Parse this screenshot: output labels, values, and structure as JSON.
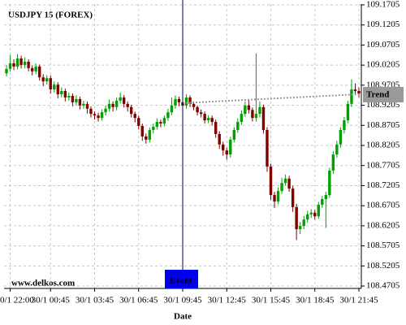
{
  "chart_data": {
    "type": "candlestick",
    "title": "USDJPY 15 (FOREX)",
    "x_label": "Date",
    "footer": "www.delkos.com",
    "categories": [
      null,
      "0/1 22:00",
      null,
      null,
      null,
      null,
      null,
      null,
      null,
      null,
      null,
      null,
      "30/1 00:45",
      null,
      null,
      null,
      null,
      null,
      null,
      null,
      null,
      null,
      null,
      null,
      "30/1 03:45",
      null,
      null,
      null,
      null,
      null,
      null,
      null,
      null,
      null,
      null,
      null,
      "30/1 06:45",
      null,
      null,
      null,
      null,
      null,
      null,
      null,
      null,
      null,
      null,
      null,
      "30/1 09:45",
      null,
      null,
      null,
      null,
      null,
      null,
      null,
      null,
      null,
      null,
      null,
      "30/1 12:45",
      null,
      null,
      null,
      null,
      null,
      null,
      null,
      null,
      null,
      null,
      null,
      "30/1 15:45",
      null,
      null,
      null,
      null,
      null,
      null,
      null,
      null,
      null,
      null,
      null,
      "30/1 18:45",
      null,
      null,
      null,
      null,
      null,
      null,
      null,
      null,
      null,
      null,
      null,
      "30/1 21:45"
    ],
    "open": [
      109.0,
      109.011,
      109.025,
      109.017,
      109.037,
      109.021,
      109.029,
      109.013,
      109.005,
      109.017,
      108.99,
      108.98,
      108.988,
      108.96,
      108.972,
      108.948,
      108.956,
      108.94,
      108.944,
      108.928,
      108.936,
      108.92,
      108.924,
      108.912,
      108.899,
      108.895,
      108.889,
      108.903,
      108.912,
      108.924,
      108.916,
      108.932,
      108.94,
      108.924,
      108.916,
      108.899,
      108.889,
      108.869,
      108.843,
      108.835,
      108.859,
      108.867,
      108.879,
      108.875,
      108.889,
      108.903,
      108.92,
      108.936,
      108.928,
      108.92,
      108.94,
      108.924,
      108.916,
      108.903,
      108.899,
      108.883,
      108.889,
      108.879,
      108.849,
      108.823,
      108.808,
      108.798,
      108.835,
      108.859,
      108.879,
      108.899,
      108.92,
      108.909,
      108.889,
      108.899,
      108.916,
      108.859,
      108.768,
      108.697,
      108.681,
      108.707,
      108.727,
      108.738,
      108.713,
      108.667,
      108.612,
      108.62,
      108.636,
      108.649,
      108.653,
      108.644,
      108.673,
      108.687,
      108.697,
      108.758,
      108.798,
      108.823,
      108.859,
      108.883,
      108.924,
      108.96,
      108.956
    ],
    "high": [
      109.02,
      109.045,
      109.035,
      109.048,
      109.044,
      109.04,
      109.035,
      109.02,
      109.025,
      109.022,
      108.998,
      108.996,
      108.995,
      108.98,
      108.978,
      108.965,
      108.962,
      108.952,
      108.95,
      108.945,
      108.942,
      108.932,
      108.93,
      108.918,
      108.905,
      108.902,
      108.91,
      108.92,
      108.935,
      108.93,
      108.94,
      108.952,
      108.946,
      108.93,
      108.922,
      108.905,
      108.895,
      108.875,
      108.85,
      108.865,
      108.875,
      108.888,
      108.885,
      108.895,
      108.912,
      108.94,
      108.945,
      108.942,
      108.935,
      108.948,
      108.945,
      108.93,
      108.92,
      108.91,
      108.905,
      108.896,
      108.895,
      108.885,
      108.856,
      108.83,
      108.815,
      108.842,
      108.866,
      108.888,
      108.908,
      108.93,
      108.935,
      108.915,
      109.05,
      108.93,
      108.922,
      108.866,
      108.775,
      108.705,
      108.716,
      108.74,
      108.748,
      108.745,
      108.72,
      108.675,
      108.63,
      108.645,
      108.658,
      108.662,
      108.66,
      108.68,
      108.695,
      108.705,
      108.765,
      108.806,
      108.832,
      108.866,
      108.892,
      108.932,
      108.985,
      108.975,
      108.965
    ],
    "low": [
      108.992,
      109.005,
      109.008,
      109.01,
      109.012,
      109.012,
      109.005,
      108.995,
      108.998,
      108.982,
      108.968,
      108.972,
      108.95,
      108.952,
      108.938,
      108.94,
      108.93,
      108.932,
      108.918,
      108.92,
      108.91,
      108.912,
      108.9,
      108.89,
      108.885,
      108.88,
      108.882,
      108.895,
      108.905,
      108.905,
      108.908,
      108.925,
      108.915,
      108.905,
      108.89,
      108.878,
      108.86,
      108.832,
      108.825,
      108.828,
      108.85,
      108.86,
      108.866,
      108.868,
      108.882,
      108.896,
      108.912,
      108.918,
      108.905,
      108.912,
      108.916,
      108.908,
      108.895,
      108.89,
      108.875,
      108.876,
      108.87,
      108.84,
      108.812,
      108.795,
      108.785,
      108.79,
      108.828,
      108.852,
      108.872,
      108.892,
      108.9,
      108.88,
      108.88,
      108.89,
      108.85,
      108.755,
      108.685,
      108.665,
      108.674,
      108.7,
      108.72,
      108.705,
      108.655,
      108.585,
      108.6,
      108.612,
      108.628,
      108.64,
      108.636,
      108.638,
      108.665,
      108.615,
      108.69,
      108.75,
      108.79,
      108.815,
      108.85,
      108.876,
      108.916,
      108.948,
      108.94
    ],
    "close": [
      109.011,
      109.025,
      109.017,
      109.037,
      109.021,
      109.029,
      109.013,
      109.005,
      109.017,
      108.99,
      108.98,
      108.988,
      108.96,
      108.972,
      108.948,
      108.956,
      108.94,
      108.944,
      108.928,
      108.936,
      108.92,
      108.924,
      108.912,
      108.899,
      108.895,
      108.889,
      108.903,
      108.912,
      108.924,
      108.916,
      108.932,
      108.94,
      108.924,
      108.916,
      108.899,
      108.889,
      108.869,
      108.843,
      108.835,
      108.859,
      108.867,
      108.879,
      108.875,
      108.889,
      108.903,
      108.92,
      108.936,
      108.928,
      108.92,
      108.94,
      108.924,
      108.916,
      108.903,
      108.899,
      108.883,
      108.889,
      108.879,
      108.849,
      108.823,
      108.808,
      108.798,
      108.835,
      108.859,
      108.879,
      108.899,
      108.92,
      108.909,
      108.889,
      108.899,
      108.916,
      108.859,
      108.768,
      108.697,
      108.681,
      108.707,
      108.727,
      108.738,
      108.713,
      108.667,
      108.612,
      108.62,
      108.636,
      108.649,
      108.653,
      108.644,
      108.673,
      108.687,
      108.697,
      108.758,
      108.798,
      108.823,
      108.859,
      108.883,
      108.924,
      108.96,
      108.956,
      108.95
    ],
    "up_color": "#00a000",
    "down_color": "#800000",
    "ylim": [
      108.4645,
      109.1725
    ],
    "yticks": [
      108.4705,
      108.5205,
      108.5705,
      108.6205,
      108.6705,
      108.7205,
      108.7705,
      108.8205,
      108.8705,
      108.9205,
      108.9705,
      109.0205,
      109.0705,
      109.1205,
      109.1705
    ],
    "grid": true,
    "event": {
      "label": "Event",
      "x": "30/1 09:45",
      "color": "#0000ee"
    },
    "trend": {
      "label": "Trend",
      "x": [
        "30/1 09:45",
        "30/1 21:45"
      ],
      "values": [
        108.926,
        108.948
      ],
      "color": "#999999"
    }
  }
}
